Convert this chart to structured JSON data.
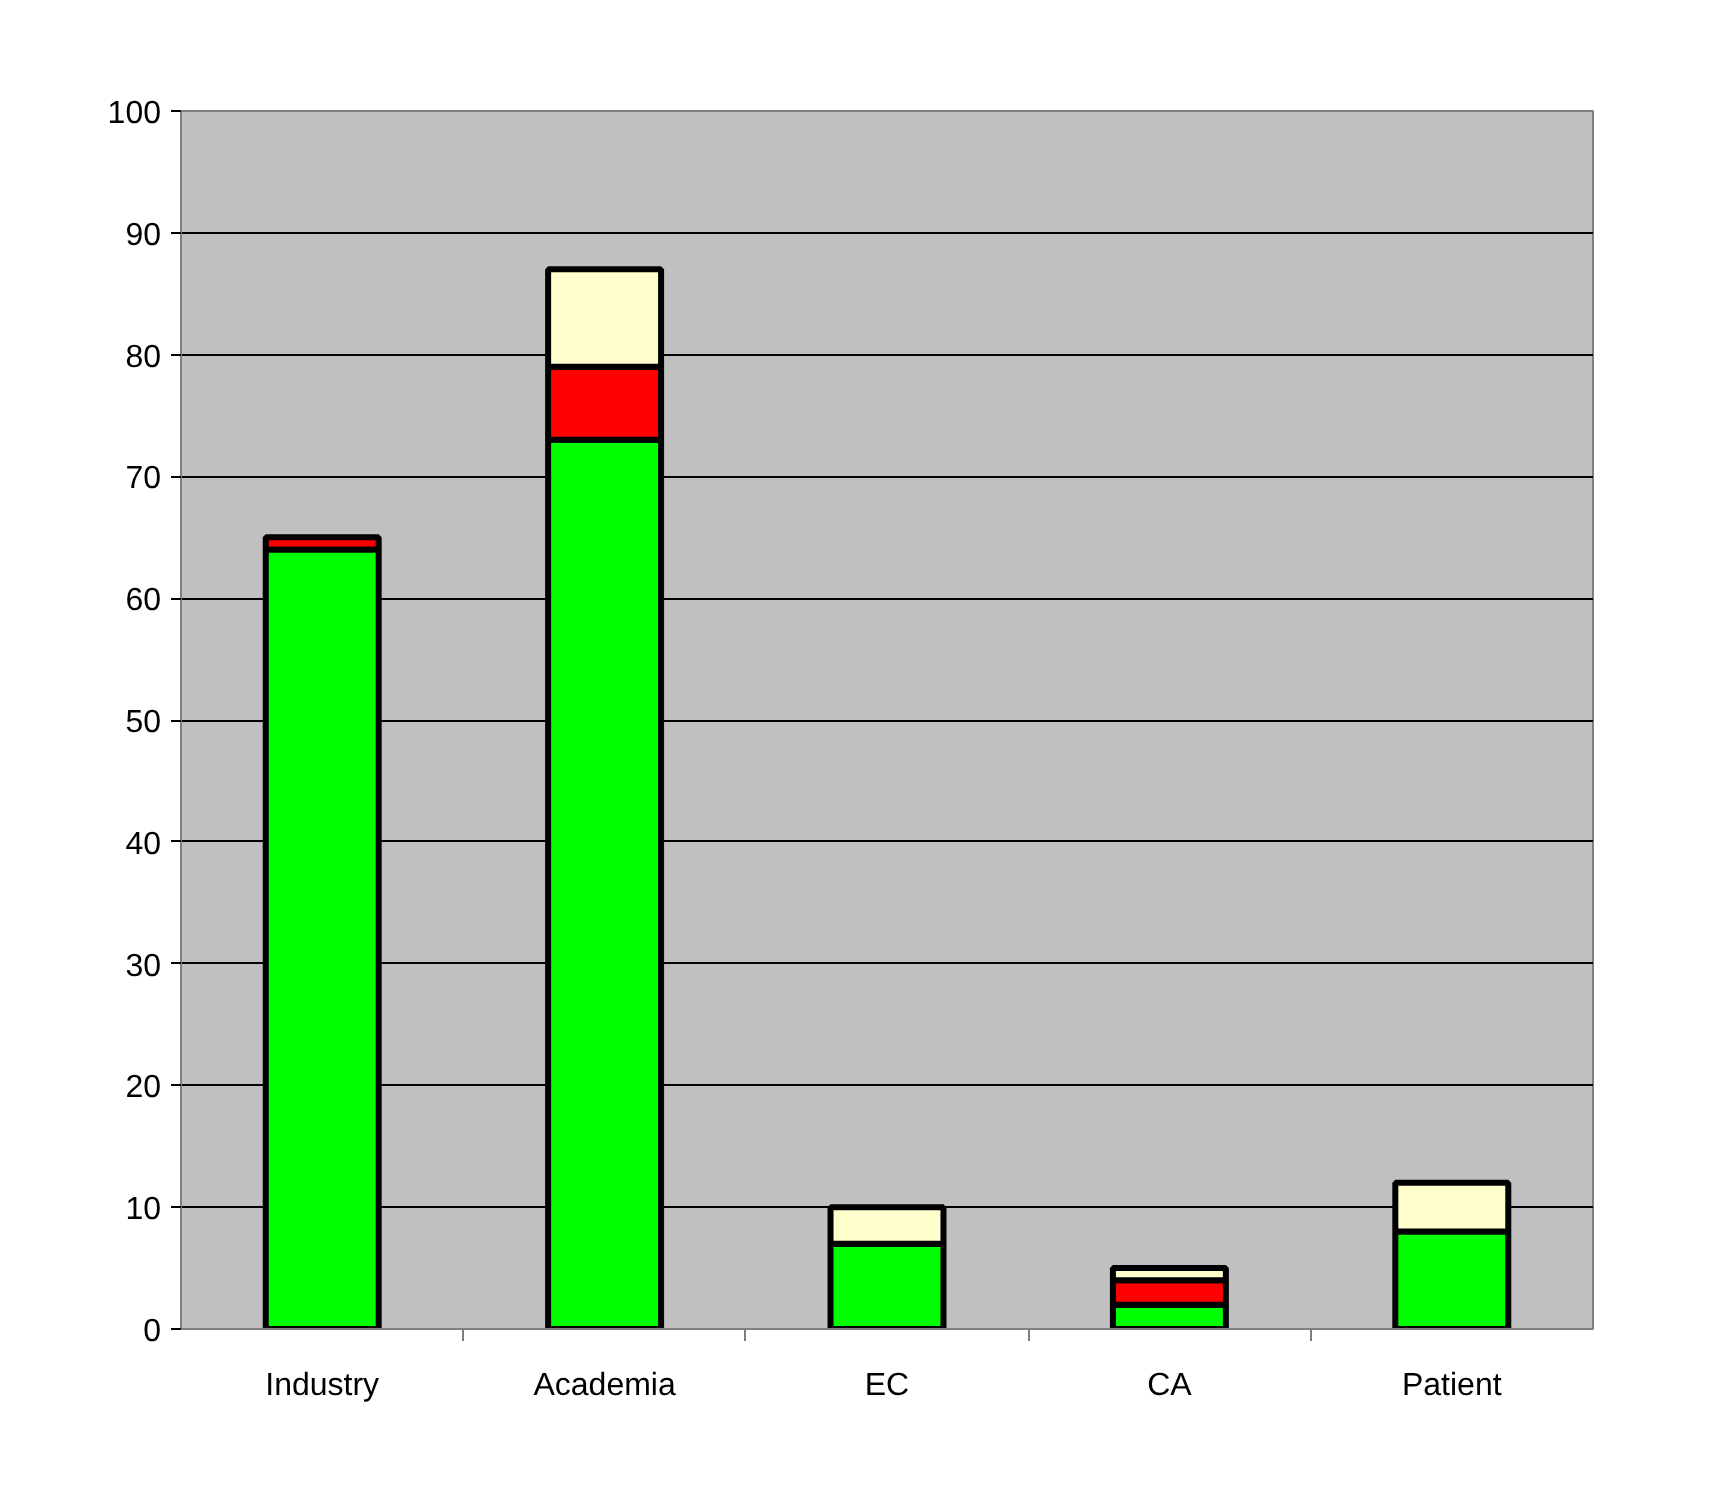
{
  "chart_data": {
    "type": "bar",
    "stacked": true,
    "categories": [
      "Industry",
      "Academia",
      "EC",
      "CA",
      "Patient"
    ],
    "series": [
      {
        "color": "#00ff00",
        "values": [
          64,
          73,
          7,
          2,
          8
        ]
      },
      {
        "color": "#ff0000",
        "values": [
          1,
          6,
          0,
          2,
          0
        ]
      },
      {
        "color": "#ffffcc",
        "values": [
          0,
          8,
          3,
          1,
          4
        ]
      }
    ],
    "ylim": [
      0,
      100
    ],
    "yticks": [
      0,
      10,
      20,
      30,
      40,
      50,
      60,
      70,
      80,
      90,
      100
    ],
    "grid": "y"
  }
}
